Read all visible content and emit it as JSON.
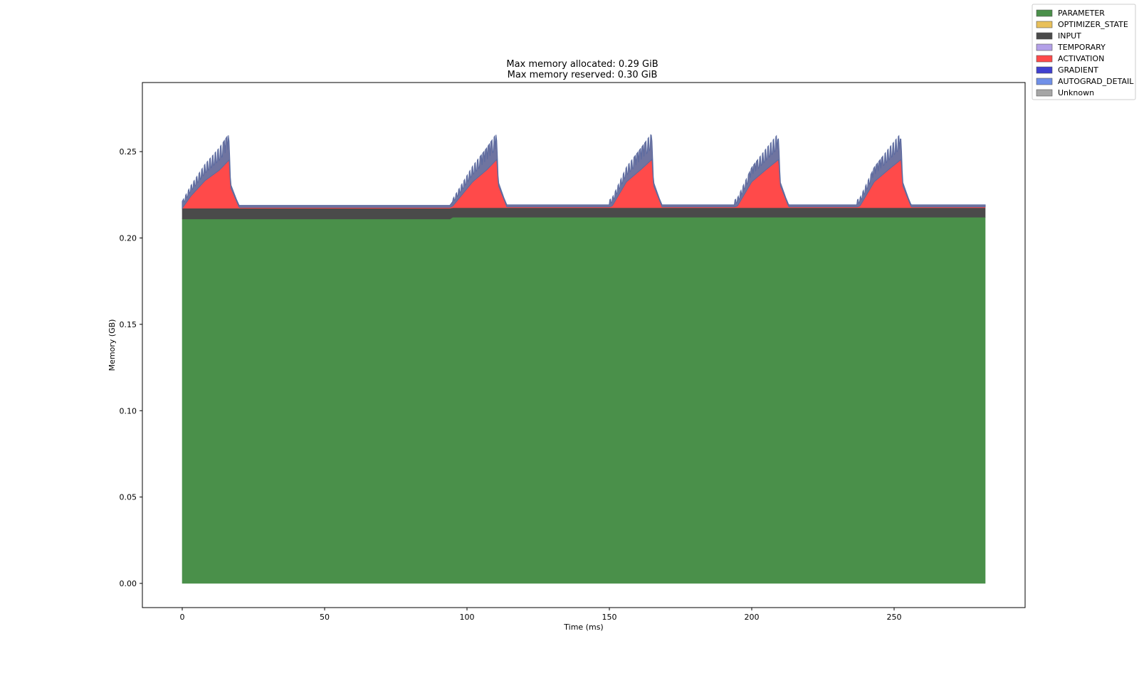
{
  "chart_data": {
    "type": "area",
    "stacked": true,
    "title": [
      "Max memory allocated: 0.29 GiB",
      "Max memory reserved: 0.30 GiB"
    ],
    "xlabel": "Time (ms)",
    "ylabel": "Memory (GB)",
    "xlim": [
      -14,
      296
    ],
    "ylim": [
      -0.014,
      0.29
    ],
    "xticks": [
      0,
      50,
      100,
      150,
      200,
      250
    ],
    "xtick_labels": [
      "0",
      "50",
      "100",
      "150",
      "200",
      "250"
    ],
    "yticks": [
      0.0,
      0.05,
      0.1,
      0.15,
      0.2,
      0.25
    ],
    "ytick_labels": [
      "0.00",
      "0.05",
      "0.10",
      "0.15",
      "0.20",
      "0.25"
    ],
    "grid": false,
    "legend_position": "top-right",
    "series": [
      {
        "name": "PARAMETER",
        "color": "#4a904a",
        "x": [
          0,
          94,
          95,
          282
        ],
        "values": [
          0.211,
          0.211,
          0.212,
          0.212
        ]
      },
      {
        "name": "OPTIMIZER_STATE",
        "color": "#e8c05a",
        "x": [
          0,
          282
        ],
        "values": [
          0.0,
          0.0
        ]
      },
      {
        "name": "INPUT",
        "color": "#4a4a4a",
        "x": [
          0,
          94,
          95,
          282
        ],
        "values": [
          0.0062,
          0.0062,
          0.0055,
          0.0055
        ]
      },
      {
        "name": "TEMPORARY",
        "color": "#b3a0e8",
        "x": [
          0,
          282
        ],
        "values": [
          0.0,
          0.0
        ]
      },
      {
        "name": "ACTIVATION",
        "color": "#ff4a4a",
        "x": [
          0,
          3,
          8,
          13,
          16.5,
          17,
          20,
          94,
          95,
          102,
          107,
          110.5,
          111,
          114,
          150,
          151,
          156,
          161,
          165,
          165.5,
          168.5,
          194,
          195,
          200,
          205,
          209.5,
          210,
          213,
          237,
          238,
          243,
          248,
          252.5,
          253,
          256,
          282
        ],
        "values": [
          0.0,
          0.007,
          0.016,
          0.022,
          0.028,
          0.012,
          0.0005,
          0.0005,
          0.001,
          0.015,
          0.022,
          0.028,
          0.013,
          0.0005,
          0.0005,
          0.001,
          0.015,
          0.022,
          0.028,
          0.013,
          0.0005,
          0.0005,
          0.001,
          0.015,
          0.022,
          0.028,
          0.013,
          0.0005,
          0.0005,
          0.001,
          0.015,
          0.022,
          0.028,
          0.013,
          0.0005,
          0.0005
        ]
      },
      {
        "name": "GRADIENT",
        "color": "#4040d0",
        "x": [
          0,
          282
        ],
        "values": [
          0.0,
          0.0
        ]
      },
      {
        "name": "AUTOGRAD_DETAIL",
        "color": "#7090e8",
        "x": [
          0,
          1,
          16,
          16.2,
          17,
          19,
          20,
          94,
          95.2,
          110,
          110.2,
          111,
          113,
          114,
          150,
          150.2,
          164.5,
          164.7,
          165.5,
          167.5,
          168.5,
          194,
          194.2,
          209,
          209.2,
          210,
          212,
          213,
          237,
          237.2,
          252,
          252.2,
          253,
          255,
          256,
          282
        ],
        "values": [
          0.002,
          0.002,
          0.002,
          0.015,
          0.002,
          0.001,
          0.0012,
          0.0012,
          0.003,
          0.003,
          0.015,
          0.002,
          0.001,
          0.0012,
          0.0012,
          0.003,
          0.003,
          0.015,
          0.002,
          0.001,
          0.0012,
          0.0012,
          0.003,
          0.003,
          0.015,
          0.002,
          0.001,
          0.0012,
          0.0012,
          0.003,
          0.003,
          0.015,
          0.002,
          0.001,
          0.0012,
          0.0012
        ]
      },
      {
        "name": "Unknown",
        "color": "#a6a6a6",
        "x": [
          0,
          282
        ],
        "values": [
          0.0,
          0.0
        ]
      }
    ]
  }
}
